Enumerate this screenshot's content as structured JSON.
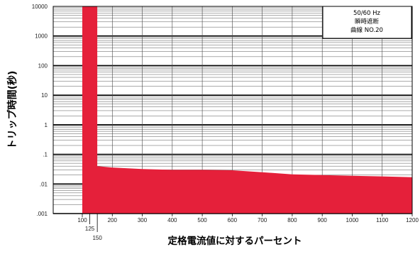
{
  "chart_data": {
    "type": "area",
    "y_scale": "log",
    "ylim": [
      0.001,
      10000
    ],
    "xlim": [
      100,
      1200
    ],
    "y_ticks": [
      0.001,
      0.01,
      0.1,
      1,
      10,
      100,
      1000,
      10000
    ],
    "y_tick_labels": [
      ".001",
      ".01",
      ".1",
      "1",
      "10",
      "100",
      "1000",
      "10000"
    ],
    "x_ticks": [
      100,
      125,
      150,
      200,
      300,
      400,
      500,
      600,
      700,
      800,
      900,
      1000,
      1100,
      1200
    ],
    "x_tick_labels": [
      "100",
      "125",
      "150",
      "200",
      "300",
      "400",
      "500",
      "600",
      "700",
      "800",
      "900",
      "1000",
      "1100",
      "1200"
    ],
    "ylabel": "トリップ時間(秒)",
    "xlabel": "定格電流値に対するパーセント",
    "legend": {
      "lines": [
        "50/60 Hz",
        "瞬時遮断",
        "曲線 NO.20"
      ],
      "placement": "top-right"
    },
    "grid": true,
    "series": [
      {
        "fill_color": "#e5203a",
        "x": [
          100,
          150,
          150,
          200,
          300,
          400,
          500,
          600,
          700,
          800,
          900,
          1000,
          1100,
          1200
        ],
        "y": [
          10000,
          10000,
          0.04,
          0.036,
          0.032,
          0.03,
          0.03,
          0.029,
          0.025,
          0.021,
          0.02,
          0.019,
          0.018,
          0.017
        ]
      }
    ]
  }
}
